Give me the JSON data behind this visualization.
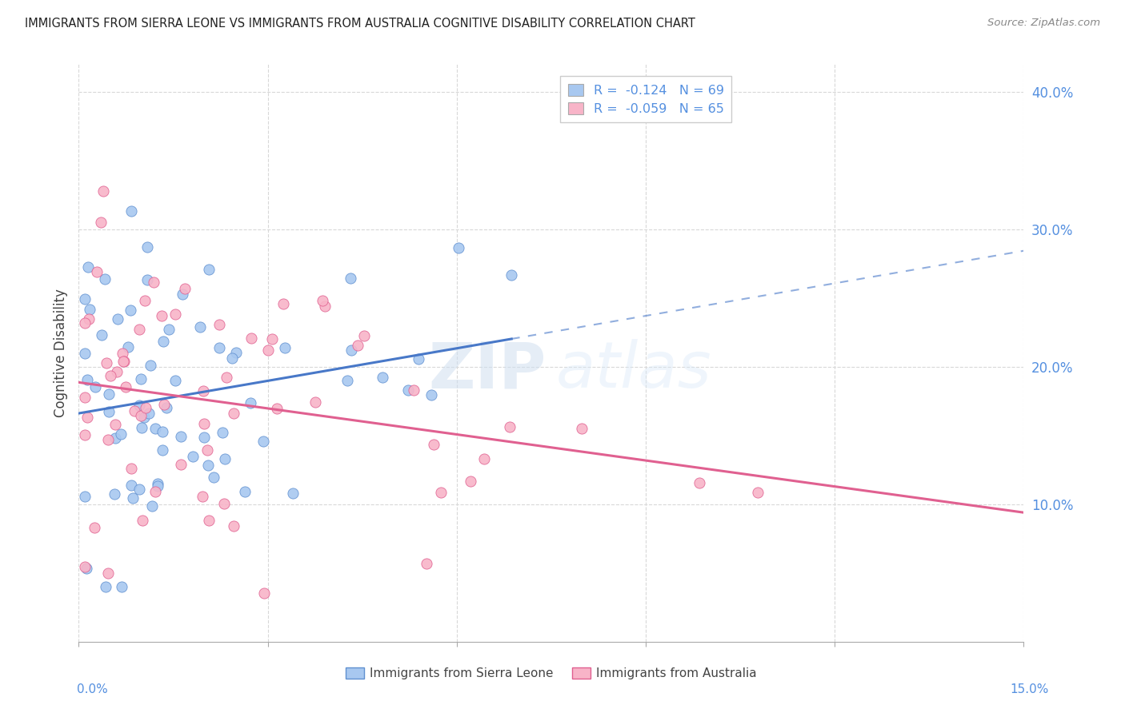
{
  "title": "IMMIGRANTS FROM SIERRA LEONE VS IMMIGRANTS FROM AUSTRALIA COGNITIVE DISABILITY CORRELATION CHART",
  "source_text": "Source: ZipAtlas.com",
  "ylabel": "Cognitive Disability",
  "right_ytick_vals": [
    0.1,
    0.2,
    0.3,
    0.4
  ],
  "right_ytick_labels": [
    "10.0%",
    "20.0%",
    "30.0%",
    "40.0%"
  ],
  "xlim": [
    0.0,
    0.15
  ],
  "ylim": [
    0.0,
    0.42
  ],
  "legend1_r": "R = ",
  "legend1_r_val": "-0.124",
  "legend1_n": "  N = 69",
  "legend2_r": "R = ",
  "legend2_r_val": "-0.059",
  "legend2_n": "  N = 65",
  "series1_name": "Immigrants from Sierra Leone",
  "series2_name": "Immigrants from Australia",
  "series1_color": "#a8c8f0",
  "series2_color": "#f8b4c8",
  "series1_edge": "#6090d0",
  "series2_edge": "#e06090",
  "trend1_color": "#4878c8",
  "trend2_color": "#e06090",
  "watermark_zip": "ZIP",
  "watermark_atlas": "atlas",
  "grid_color": "#d8d8d8",
  "bottom_label_color": "#5590e0"
}
